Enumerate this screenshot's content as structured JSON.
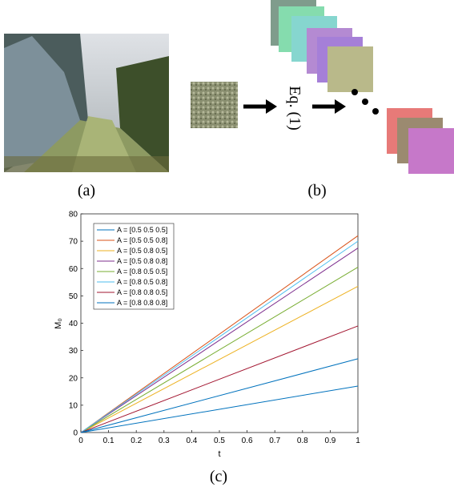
{
  "figure": {
    "captions": [
      "(a)",
      "(b)"
    ],
    "equation_label": "Eq. (1)"
  },
  "chart_data": {
    "type": "line",
    "caption": "(c)",
    "x_label": "t",
    "y_label": "M₀",
    "x": [
      0,
      1
    ],
    "series": [
      {
        "name": "A = [0.5 0.5 0.5]",
        "color": "#0072bd",
        "values": [
          0,
          17
        ]
      },
      {
        "name": "A = [0.5 0.5 0.8]",
        "color": "#d95319",
        "values": [
          0,
          72
        ]
      },
      {
        "name": "A = [0.5 0.8 0.5]",
        "color": "#edb120",
        "values": [
          0,
          53.5
        ]
      },
      {
        "name": "A = [0.5 0.8 0.8]",
        "color": "#7e2f8e",
        "values": [
          0,
          67.5
        ]
      },
      {
        "name": "A = [0.8 0.5 0.5]",
        "color": "#77ac30",
        "values": [
          0,
          60.5
        ]
      },
      {
        "name": "A = [0.8 0.5 0.8]",
        "color": "#4dbeee",
        "values": [
          0,
          70
        ]
      },
      {
        "name": "A = [0.8 0.8 0.5]",
        "color": "#a2142f",
        "values": [
          0,
          39
        ]
      },
      {
        "name": "A = [0.8 0.8 0.8]",
        "color": "#0072bd",
        "values": [
          0,
          27
        ]
      }
    ],
    "xlim": [
      0,
      1
    ],
    "xticks": [
      0,
      0.1,
      0.2,
      0.3,
      0.4,
      0.5,
      0.6,
      0.7,
      0.8,
      0.9,
      1
    ],
    "ylim": [
      0,
      80
    ],
    "yticks": [
      0,
      10,
      20,
      30,
      40,
      50,
      60,
      70,
      80
    ],
    "legend": "upper-left"
  }
}
